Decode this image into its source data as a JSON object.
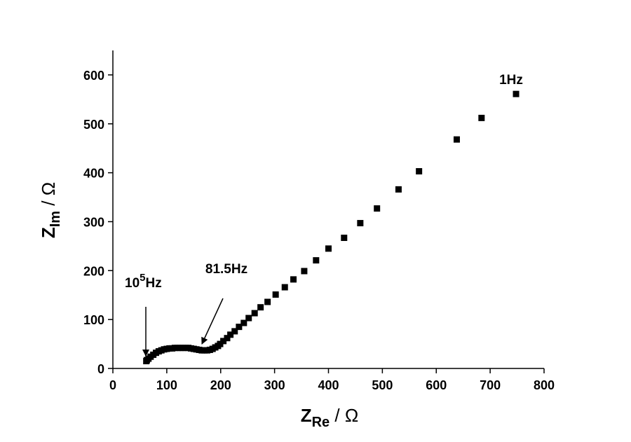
{
  "chart_data": {
    "type": "scatter",
    "x_label": {
      "main": "Z",
      "sub": "Re",
      "unit": " / Ω"
    },
    "y_label": {
      "main": "Z",
      "sub": "Im",
      "unit": " / Ω"
    },
    "xlim": [
      0,
      800
    ],
    "ylim": [
      0,
      650
    ],
    "xticks": [
      0,
      100,
      200,
      300,
      400,
      500,
      600,
      700,
      800
    ],
    "yticks": [
      0,
      100,
      200,
      300,
      400,
      500,
      600
    ],
    "color": "#000000",
    "x": [
      62,
      63,
      66,
      70,
      75,
      80,
      85,
      90,
      95,
      100,
      105,
      110,
      115,
      120,
      125,
      130,
      135,
      140,
      145,
      150,
      155,
      160,
      165,
      170,
      175,
      180,
      185,
      190,
      195,
      199,
      205,
      212,
      218,
      226,
      234,
      243,
      252,
      263,
      274,
      287,
      302,
      319,
      335,
      355,
      377,
      400,
      429,
      459,
      490,
      530,
      568,
      638,
      684,
      748
    ],
    "values": [
      15,
      17,
      20,
      24,
      28,
      32,
      35,
      37,
      39,
      40,
      41,
      41,
      42,
      42,
      42,
      42,
      42,
      42,
      41,
      40,
      39,
      38,
      37,
      37,
      37,
      38,
      40,
      43,
      46,
      50,
      56,
      62,
      69,
      76,
      85,
      93,
      103,
      113,
      125,
      136,
      151,
      166,
      182,
      199,
      221,
      245,
      267,
      297,
      327,
      366,
      403,
      468,
      512,
      561
    ],
    "annotations": {
      "high": {
        "base": "10",
        "sup": "5",
        "rest": "Hz"
      },
      "mid": "81.5Hz",
      "low": "1Hz"
    }
  }
}
